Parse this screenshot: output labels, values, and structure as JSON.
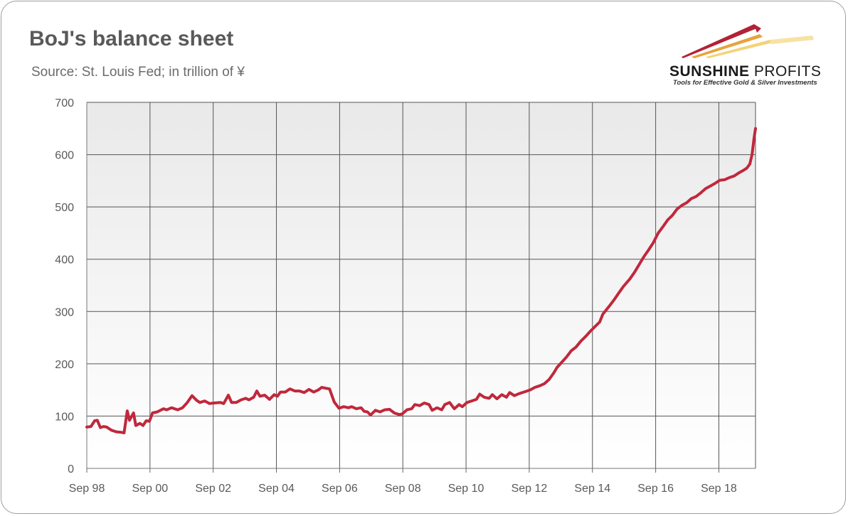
{
  "title": "BoJ's balance sheet",
  "subtitle": "Source: St. Louis Fed; in trillion of ¥",
  "logo": {
    "name_bold": "SUNSHINE",
    "name_light": " PROFITS",
    "tagline": "Tools for Effective Gold & Silver Investments",
    "colors": [
      "#b22234",
      "#e8a33a",
      "#f3d37a"
    ]
  },
  "chart_data": {
    "type": "line",
    "title": "BoJ's balance sheet",
    "xlabel": "",
    "ylabel": "",
    "ylim": [
      0,
      700
    ],
    "yticks": [
      0,
      100,
      200,
      300,
      400,
      500,
      600,
      700
    ],
    "xlim": [
      1998.67,
      2019.83
    ],
    "xticks": [
      {
        "x": 1998.67,
        "label": "Sep 98"
      },
      {
        "x": 2000.67,
        "label": "Sep 00"
      },
      {
        "x": 2002.67,
        "label": "Sep 02"
      },
      {
        "x": 2004.67,
        "label": "Sep 04"
      },
      {
        "x": 2006.67,
        "label": "Sep 06"
      },
      {
        "x": 2008.67,
        "label": "Sep 08"
      },
      {
        "x": 2010.67,
        "label": "Sep 10"
      },
      {
        "x": 2012.67,
        "label": "Sep 12"
      },
      {
        "x": 2014.67,
        "label": "Sep 14"
      },
      {
        "x": 2016.67,
        "label": "Sep 16"
      },
      {
        "x": 2018.67,
        "label": "Sep 18"
      }
    ],
    "grid": true,
    "line_color": "#c0283c",
    "series": [
      {
        "points": [
          [
            1998.67,
            79
          ],
          [
            1998.8,
            80
          ],
          [
            1998.92,
            91
          ],
          [
            1999.0,
            92
          ],
          [
            1999.1,
            78
          ],
          [
            1999.2,
            80
          ],
          [
            1999.3,
            79
          ],
          [
            1999.45,
            73
          ],
          [
            1999.6,
            70
          ],
          [
            1999.75,
            69
          ],
          [
            1999.85,
            68
          ],
          [
            1999.95,
            110
          ],
          [
            2000.02,
            92
          ],
          [
            2000.15,
            106
          ],
          [
            2000.22,
            82
          ],
          [
            2000.35,
            86
          ],
          [
            2000.45,
            82
          ],
          [
            2000.55,
            91
          ],
          [
            2000.65,
            90
          ],
          [
            2000.75,
            106
          ],
          [
            2000.9,
            108
          ],
          [
            2001.1,
            114
          ],
          [
            2001.2,
            112
          ],
          [
            2001.35,
            116
          ],
          [
            2001.55,
            112
          ],
          [
            2001.7,
            116
          ],
          [
            2001.85,
            126
          ],
          [
            2002.0,
            139
          ],
          [
            2002.15,
            130
          ],
          [
            2002.25,
            126
          ],
          [
            2002.4,
            129
          ],
          [
            2002.55,
            124
          ],
          [
            2002.7,
            125
          ],
          [
            2002.9,
            126
          ],
          [
            2003.0,
            124
          ],
          [
            2003.15,
            140
          ],
          [
            2003.25,
            126
          ],
          [
            2003.4,
            126
          ],
          [
            2003.55,
            131
          ],
          [
            2003.7,
            134
          ],
          [
            2003.8,
            131
          ],
          [
            2003.95,
            136
          ],
          [
            2004.05,
            148
          ],
          [
            2004.15,
            138
          ],
          [
            2004.3,
            140
          ],
          [
            2004.45,
            132
          ],
          [
            2004.6,
            141
          ],
          [
            2004.7,
            138
          ],
          [
            2004.8,
            146
          ],
          [
            2004.95,
            146
          ],
          [
            2005.1,
            152
          ],
          [
            2005.25,
            148
          ],
          [
            2005.4,
            148
          ],
          [
            2005.55,
            145
          ],
          [
            2005.7,
            151
          ],
          [
            2005.85,
            146
          ],
          [
            2006.0,
            150
          ],
          [
            2006.1,
            155
          ],
          [
            2006.25,
            153
          ],
          [
            2006.35,
            152
          ],
          [
            2006.5,
            127
          ],
          [
            2006.65,
            115
          ],
          [
            2006.8,
            118
          ],
          [
            2006.95,
            116
          ],
          [
            2007.05,
            118
          ],
          [
            2007.2,
            114
          ],
          [
            2007.35,
            116
          ],
          [
            2007.45,
            109
          ],
          [
            2007.55,
            108
          ],
          [
            2007.65,
            102
          ],
          [
            2007.8,
            111
          ],
          [
            2007.95,
            108
          ],
          [
            2008.1,
            112
          ],
          [
            2008.25,
            113
          ],
          [
            2008.4,
            106
          ],
          [
            2008.55,
            103
          ],
          [
            2008.65,
            104
          ],
          [
            2008.8,
            112
          ],
          [
            2008.95,
            114
          ],
          [
            2009.05,
            122
          ],
          [
            2009.2,
            120
          ],
          [
            2009.35,
            125
          ],
          [
            2009.5,
            122
          ],
          [
            2009.6,
            111
          ],
          [
            2009.75,
            116
          ],
          [
            2009.9,
            112
          ],
          [
            2010.0,
            122
          ],
          [
            2010.15,
            126
          ],
          [
            2010.3,
            114
          ],
          [
            2010.45,
            122
          ],
          [
            2010.55,
            118
          ],
          [
            2010.7,
            126
          ],
          [
            2010.85,
            129
          ],
          [
            2011.0,
            132
          ],
          [
            2011.1,
            142
          ],
          [
            2011.25,
            136
          ],
          [
            2011.4,
            134
          ],
          [
            2011.5,
            141
          ],
          [
            2011.65,
            133
          ],
          [
            2011.8,
            141
          ],
          [
            2011.95,
            136
          ],
          [
            2012.05,
            145
          ],
          [
            2012.2,
            139
          ],
          [
            2012.35,
            143
          ],
          [
            2012.5,
            146
          ],
          [
            2012.7,
            150
          ],
          [
            2012.85,
            155
          ],
          [
            2013.0,
            158
          ],
          [
            2013.15,
            162
          ],
          [
            2013.3,
            170
          ],
          [
            2013.45,
            183
          ],
          [
            2013.55,
            193
          ],
          [
            2013.7,
            203
          ],
          [
            2013.85,
            213
          ],
          [
            2014.0,
            225
          ],
          [
            2014.15,
            232
          ],
          [
            2014.3,
            243
          ],
          [
            2014.45,
            252
          ],
          [
            2014.6,
            262
          ],
          [
            2014.75,
            271
          ],
          [
            2014.9,
            280
          ],
          [
            2015.0,
            295
          ],
          [
            2015.2,
            310
          ],
          [
            2015.35,
            322
          ],
          [
            2015.5,
            335
          ],
          [
            2015.65,
            348
          ],
          [
            2015.85,
            362
          ],
          [
            2016.0,
            375
          ],
          [
            2016.15,
            390
          ],
          [
            2016.3,
            405
          ],
          [
            2016.45,
            418
          ],
          [
            2016.6,
            432
          ],
          [
            2016.75,
            450
          ],
          [
            2016.9,
            462
          ],
          [
            2017.05,
            475
          ],
          [
            2017.2,
            484
          ],
          [
            2017.35,
            496
          ],
          [
            2017.5,
            503
          ],
          [
            2017.65,
            508
          ],
          [
            2017.8,
            516
          ],
          [
            2017.95,
            520
          ],
          [
            2018.1,
            527
          ],
          [
            2018.25,
            535
          ],
          [
            2018.4,
            540
          ],
          [
            2018.55,
            545
          ],
          [
            2018.7,
            551
          ],
          [
            2018.85,
            552
          ],
          [
            2019.0,
            556
          ],
          [
            2019.15,
            559
          ],
          [
            2019.3,
            565
          ],
          [
            2019.45,
            570
          ],
          [
            2019.55,
            574
          ],
          [
            2019.65,
            582
          ],
          [
            2019.72,
            600
          ],
          [
            2019.78,
            630
          ],
          [
            2019.83,
            650
          ]
        ]
      }
    ]
  }
}
